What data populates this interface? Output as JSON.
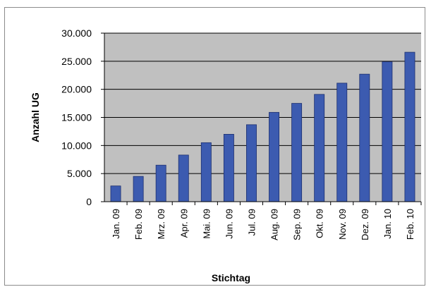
{
  "chart_data": {
    "type": "bar",
    "title": "",
    "xlabel": "Stichtag",
    "ylabel": "Anzahl UG",
    "ylim": [
      0,
      30000
    ],
    "yticks": [
      "0",
      "5.000",
      "10.000",
      "15.000",
      "20.000",
      "25.000",
      "30.000"
    ],
    "grid": true,
    "categories": [
      "Jan. 09",
      "Feb. 09",
      "Mrz. 09",
      "Apr. 09",
      "Mai. 09",
      "Jun. 09",
      "Jul. 09",
      "Aug. 09",
      "Sep. 09",
      "Okt. 09",
      "Nov. 09",
      "Dez. 09",
      "Jan. 10",
      "Feb. 10"
    ],
    "values": [
      2800,
      4500,
      6500,
      8300,
      10500,
      12000,
      13700,
      15900,
      17500,
      19100,
      21100,
      22700,
      24900,
      26600
    ],
    "colors": {
      "bar": "#3c5bb0",
      "plot_bg": "#c0c0c0",
      "grid": "#000000"
    }
  }
}
